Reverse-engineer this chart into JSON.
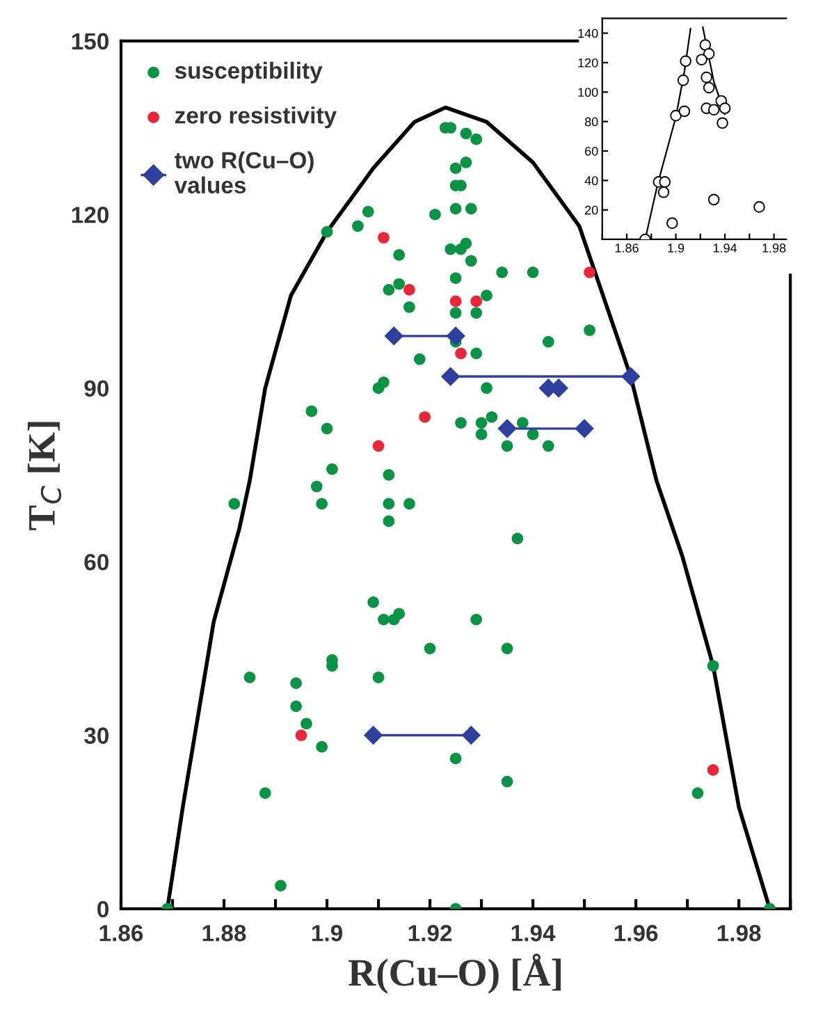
{
  "chart_data": [
    {
      "type": "scatter",
      "xlabel": "R(Cu–O) [Å]",
      "ylabel": "T$_{C}$ [K]",
      "xlim": [
        1.86,
        1.99
      ],
      "ylim": [
        0,
        150
      ],
      "xticks": [
        1.86,
        {
          "value": 1.87,
          "label": null
        },
        1.88,
        {
          "value": 1.89,
          "label": null
        },
        1.9,
        {
          "value": 1.91,
          "label": null
        },
        1.92,
        {
          "value": 1.93,
          "label": null
        },
        1.94,
        {
          "value": 1.95,
          "label": null
        },
        1.96,
        {
          "value": 1.97,
          "label": null
        },
        1.98,
        {
          "value": 1.99,
          "label": null
        }
      ],
      "yticks": [
        0,
        30,
        60,
        90,
        120,
        150
      ],
      "grid": false,
      "legend": "top left",
      "series": [
        {
          "type": "line",
          "color": "#000000",
          "marker": "none",
          "x": [
            1.869,
            1.872,
            1.878,
            1.883,
            1.885,
            1.888,
            1.893,
            1.9,
            1.909,
            1.917,
            1.923,
            1.931,
            1.94,
            1.949,
            1.959,
            1.964,
            1.969,
            1.975,
            1.98,
            1.986
          ],
          "values": [
            0,
            17.6,
            49.6,
            65.8,
            74,
            90,
            106,
            117,
            128,
            136,
            138.5,
            136,
            129,
            118,
            92,
            74,
            61,
            42,
            17.6,
            0
          ]
        },
        {
          "name": "susceptibility",
          "color": "#0a9345",
          "marker": "circle",
          "x": [
            1.923,
            1.924,
            1.927,
            1.929,
            1.927,
            1.925,
            1.925,
            1.926,
            1.925,
            1.928,
            1.921,
            1.908,
            1.906,
            1.9,
            1.924,
            1.926,
            1.927,
            1.928,
            1.914,
            1.914,
            1.912,
            1.925,
            1.916,
            1.925,
            1.929,
            1.925,
            1.929,
            1.918,
            1.911,
            1.91,
            1.897,
            1.9,
            1.926,
            1.93,
            1.93,
            1.931,
            1.901,
            1.898,
            1.899,
            1.912,
            1.912,
            1.916,
            1.912,
            1.882,
            1.934,
            1.94,
            1.931,
            1.951,
            1.943,
            1.932,
            1.938,
            1.94,
            1.935,
            1.943,
            1.937,
            1.909,
            1.911,
            1.913,
            1.914,
            1.929,
            1.92,
            1.901,
            1.901,
            1.885,
            1.894,
            1.91,
            1.894,
            1.896,
            1.899,
            1.888,
            1.891,
            1.869,
            1.925,
            1.925,
            1.935,
            1.975,
            1.935,
            1.972,
            1.986
          ],
          "values": [
            135,
            135,
            134,
            133,
            129,
            128,
            125,
            125,
            121,
            121,
            120,
            120.5,
            118,
            117,
            114,
            114,
            115,
            112,
            113,
            108,
            107,
            109,
            104,
            103,
            103,
            98,
            96,
            95,
            91,
            90,
            86,
            83,
            84,
            84,
            82,
            90,
            76,
            73,
            70,
            75,
            70,
            70,
            67,
            70,
            110,
            110,
            106,
            100,
            98,
            85,
            84,
            82,
            80,
            80,
            64,
            53,
            50,
            50,
            51,
            50,
            45,
            43,
            42,
            40,
            39,
            40,
            35,
            32,
            28,
            20,
            4,
            0,
            0,
            26,
            45,
            42,
            22,
            20,
            0
          ]
        },
        {
          "name": "zero resistivity",
          "color": "#e8283a",
          "marker": "circle",
          "x": [
            1.911,
            1.916,
            1.925,
            1.929,
            1.926,
            1.919,
            1.91,
            1.951,
            1.895,
            1.975
          ],
          "values": [
            116,
            107,
            105,
            105,
            96,
            85,
            80,
            110,
            30,
            24
          ]
        },
        {
          "type": "line",
          "name": "two R(Cu–O)\nvalues",
          "color": "#2e3f9e",
          "marker": "diamond",
          "x": [
            1.913,
            1.925
          ],
          "values": [
            99,
            99
          ]
        },
        {
          "type": "line",
          "color": "#2e3f9e",
          "marker": "diamond",
          "x": [
            1.924,
            1.959
          ],
          "values": [
            92,
            92
          ]
        },
        {
          "color": "#2e3f9e",
          "marker": "diamond",
          "x": [
            1.943,
            1.945
          ],
          "values": [
            90,
            90
          ]
        },
        {
          "type": "line",
          "color": "#2e3f9e",
          "marker": "diamond",
          "x": [
            1.935,
            1.95
          ],
          "values": [
            83,
            83
          ]
        },
        {
          "type": "line",
          "color": "#2e3f9e",
          "marker": "diamond",
          "x": [
            1.909,
            1.928
          ],
          "values": [
            30,
            30
          ]
        }
      ]
    },
    {
      "type": "scatter",
      "xlim": [
        1.84,
        1.99
      ],
      "ylim": [
        0,
        150
      ],
      "xticks": [
        {
          "value": 1.84,
          "label": null
        },
        1.86,
        {
          "value": 1.88,
          "label": null
        },
        1.9,
        {
          "value": 1.92,
          "label": null
        },
        1.94,
        {
          "value": 1.96,
          "label": null
        },
        1.98
      ],
      "yticks": [
        20,
        40,
        60,
        80,
        100,
        120,
        140
      ],
      "grid": false,
      "series": [
        {
          "type": "line",
          "color": "#000000",
          "marker": "none",
          "x": [
            1.875,
            1.885,
            1.9,
            1.907,
            1.912
          ],
          "values": [
            0,
            37,
            83,
            114,
            143
          ]
        },
        {
          "type": "line",
          "color": "#000000",
          "marker": "none",
          "x": [
            1.922,
            1.931,
            1.94
          ],
          "values": [
            144,
            107,
            85
          ]
        },
        {
          "color": "#000000",
          "marker": "circle",
          "x": [
            1.875,
            1.897,
            1.886,
            1.891,
            1.89,
            1.9,
            1.907,
            1.906,
            1.908,
            1.924,
            1.927,
            1.921,
            1.925,
            1.927,
            1.925,
            1.931,
            1.937,
            1.94,
            1.938,
            1.931,
            1.968
          ],
          "values": [
            0,
            11,
            39,
            39,
            32,
            84,
            87,
            108,
            121,
            132,
            126,
            122,
            110,
            103,
            89,
            88,
            94,
            89,
            79,
            27,
            22
          ]
        }
      ]
    }
  ]
}
